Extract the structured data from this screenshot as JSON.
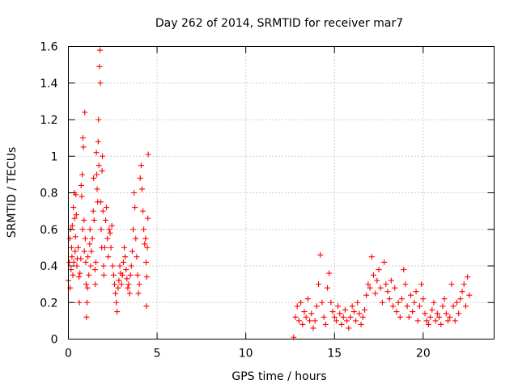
{
  "chart_data": {
    "type": "scatter",
    "title": "Day 262 of 2014, SRMTID for receiver mar7",
    "xlabel": "GPS time / hours",
    "ylabel": "SRMTID / TECUs",
    "xlim": [
      0,
      24
    ],
    "ylim": [
      0,
      1.6
    ],
    "xticks": [
      0,
      5,
      10,
      15,
      20
    ],
    "xtick_labels": [
      "0",
      "5",
      "10",
      "15",
      "20"
    ],
    "yticks": [
      0,
      0.2,
      0.4,
      0.6,
      0.8,
      1.0,
      1.2,
      1.4,
      1.6
    ],
    "ytick_labels": [
      "0",
      "0.2",
      "0.4",
      "0.6",
      "0.8",
      "1",
      "1.2",
      "1.4",
      "1.6"
    ],
    "grid": true,
    "marker": "+",
    "color": "#ff0000",
    "series": [
      {
        "name": "SRMTID",
        "points": [
          [
            0.0,
            0.32
          ],
          [
            0.05,
            0.42
          ],
          [
            0.08,
            0.55
          ],
          [
            0.1,
            0.28
          ],
          [
            0.12,
            0.6
          ],
          [
            0.15,
            0.38
          ],
          [
            0.18,
            0.5
          ],
          [
            0.2,
            0.45
          ],
          [
            0.22,
            0.62
          ],
          [
            0.25,
            0.35
          ],
          [
            0.28,
            0.72
          ],
          [
            0.3,
            0.42
          ],
          [
            0.33,
            0.8
          ],
          [
            0.35,
            0.66
          ],
          [
            0.38,
            0.48
          ],
          [
            0.4,
            0.56
          ],
          [
            0.42,
            0.79
          ],
          [
            0.45,
            0.68
          ],
          [
            0.48,
            0.4
          ],
          [
            0.5,
            0.44
          ],
          [
            0.55,
            0.5
          ],
          [
            0.6,
            0.34
          ],
          [
            0.62,
            0.2
          ],
          [
            0.65,
            0.36
          ],
          [
            0.7,
            0.44
          ],
          [
            0.72,
            0.84
          ],
          [
            0.75,
            0.78
          ],
          [
            0.78,
            0.9
          ],
          [
            0.8,
            0.6
          ],
          [
            0.82,
            1.1
          ],
          [
            0.85,
            1.05
          ],
          [
            0.88,
            0.65
          ],
          [
            0.9,
            0.48
          ],
          [
            0.92,
            1.24
          ],
          [
            0.95,
            0.55
          ],
          [
            0.98,
            0.42
          ],
          [
            1.0,
            0.3
          ],
          [
            1.02,
            0.12
          ],
          [
            1.05,
            0.2
          ],
          [
            1.08,
            0.28
          ],
          [
            1.1,
            0.45
          ],
          [
            1.15,
            0.35
          ],
          [
            1.2,
            0.52
          ],
          [
            1.22,
            0.6
          ],
          [
            1.25,
            0.4
          ],
          [
            1.3,
            0.48
          ],
          [
            1.35,
            0.55
          ],
          [
            1.4,
            0.7
          ],
          [
            1.42,
            0.88
          ],
          [
            1.45,
            0.65
          ],
          [
            1.5,
            0.38
          ],
          [
            1.52,
            0.3
          ],
          [
            1.55,
            0.42
          ],
          [
            1.58,
            1.02
          ],
          [
            1.6,
            0.9
          ],
          [
            1.62,
            0.82
          ],
          [
            1.65,
            0.75
          ],
          [
            1.68,
            1.08
          ],
          [
            1.7,
            1.2
          ],
          [
            1.72,
            0.95
          ],
          [
            1.75,
            1.49
          ],
          [
            1.78,
            1.58
          ],
          [
            1.8,
            1.4
          ],
          [
            1.82,
            0.75
          ],
          [
            1.85,
            0.6
          ],
          [
            1.88,
            0.5
          ],
          [
            1.9,
            0.92
          ],
          [
            1.92,
            1.0
          ],
          [
            1.95,
            0.7
          ],
          [
            1.98,
            0.4
          ],
          [
            2.0,
            0.35
          ],
          [
            2.05,
            0.5
          ],
          [
            2.1,
            0.65
          ],
          [
            2.15,
            0.72
          ],
          [
            2.2,
            0.55
          ],
          [
            2.25,
            0.45
          ],
          [
            2.3,
            0.6
          ],
          [
            2.35,
            0.58
          ],
          [
            2.4,
            0.5
          ],
          [
            2.45,
            0.62
          ],
          [
            2.5,
            0.4
          ],
          [
            2.55,
            0.35
          ],
          [
            2.6,
            0.3
          ],
          [
            2.65,
            0.25
          ],
          [
            2.7,
            0.2
          ],
          [
            2.75,
            0.15
          ],
          [
            2.8,
            0.28
          ],
          [
            2.85,
            0.32
          ],
          [
            2.9,
            0.4
          ],
          [
            2.95,
            0.36
          ],
          [
            3.0,
            0.3
          ],
          [
            3.05,
            0.35
          ],
          [
            3.1,
            0.42
          ],
          [
            3.15,
            0.5
          ],
          [
            3.2,
            0.45
          ],
          [
            3.25,
            0.38
          ],
          [
            3.3,
            0.33
          ],
          [
            3.35,
            0.28
          ],
          [
            3.4,
            0.3
          ],
          [
            3.45,
            0.25
          ],
          [
            3.5,
            0.35
          ],
          [
            3.55,
            0.4
          ],
          [
            3.6,
            0.48
          ],
          [
            3.65,
            0.6
          ],
          [
            3.7,
            0.8
          ],
          [
            3.75,
            0.72
          ],
          [
            3.8,
            0.55
          ],
          [
            3.85,
            0.45
          ],
          [
            3.9,
            0.35
          ],
          [
            3.95,
            0.25
          ],
          [
            4.0,
            0.3
          ],
          [
            4.05,
            0.88
          ],
          [
            4.1,
            0.95
          ],
          [
            4.15,
            0.82
          ],
          [
            4.2,
            0.7
          ],
          [
            4.25,
            0.6
          ],
          [
            4.3,
            0.52
          ],
          [
            4.35,
            0.55
          ],
          [
            4.38,
            0.42
          ],
          [
            4.4,
            0.18
          ],
          [
            4.42,
            0.34
          ],
          [
            4.45,
            0.5
          ],
          [
            4.48,
            0.66
          ],
          [
            4.5,
            1.01
          ],
          [
            12.7,
            0.01
          ],
          [
            12.8,
            0.12
          ],
          [
            12.9,
            0.18
          ],
          [
            13.0,
            0.1
          ],
          [
            13.1,
            0.2
          ],
          [
            13.2,
            0.08
          ],
          [
            13.3,
            0.15
          ],
          [
            13.4,
            0.12
          ],
          [
            13.5,
            0.22
          ],
          [
            13.6,
            0.1
          ],
          [
            13.7,
            0.14
          ],
          [
            13.8,
            0.06
          ],
          [
            13.9,
            0.1
          ],
          [
            14.0,
            0.18
          ],
          [
            14.1,
            0.3
          ],
          [
            14.2,
            0.46
          ],
          [
            14.3,
            0.2
          ],
          [
            14.4,
            0.12
          ],
          [
            14.5,
            0.08
          ],
          [
            14.6,
            0.28
          ],
          [
            14.7,
            0.36
          ],
          [
            14.8,
            0.2
          ],
          [
            14.9,
            0.15
          ],
          [
            15.0,
            0.12
          ],
          [
            15.1,
            0.1
          ],
          [
            15.2,
            0.18
          ],
          [
            15.3,
            0.14
          ],
          [
            15.4,
            0.08
          ],
          [
            15.5,
            0.12
          ],
          [
            15.6,
            0.16
          ],
          [
            15.7,
            0.1
          ],
          [
            15.8,
            0.06
          ],
          [
            15.9,
            0.12
          ],
          [
            16.0,
            0.18
          ],
          [
            16.1,
            0.15
          ],
          [
            16.2,
            0.1
          ],
          [
            16.3,
            0.2
          ],
          [
            16.4,
            0.14
          ],
          [
            16.5,
            0.08
          ],
          [
            16.6,
            0.12
          ],
          [
            16.7,
            0.16
          ],
          [
            16.8,
            0.24
          ],
          [
            16.9,
            0.3
          ],
          [
            17.0,
            0.28
          ],
          [
            17.1,
            0.45
          ],
          [
            17.2,
            0.35
          ],
          [
            17.3,
            0.25
          ],
          [
            17.4,
            0.32
          ],
          [
            17.5,
            0.38
          ],
          [
            17.6,
            0.28
          ],
          [
            17.7,
            0.2
          ],
          [
            17.8,
            0.42
          ],
          [
            17.9,
            0.3
          ],
          [
            18.0,
            0.26
          ],
          [
            18.1,
            0.22
          ],
          [
            18.2,
            0.32
          ],
          [
            18.3,
            0.18
          ],
          [
            18.4,
            0.28
          ],
          [
            18.5,
            0.15
          ],
          [
            18.6,
            0.2
          ],
          [
            18.7,
            0.12
          ],
          [
            18.8,
            0.22
          ],
          [
            18.9,
            0.38
          ],
          [
            19.0,
            0.3
          ],
          [
            19.1,
            0.18
          ],
          [
            19.2,
            0.12
          ],
          [
            19.3,
            0.24
          ],
          [
            19.4,
            0.15
          ],
          [
            19.5,
            0.2
          ],
          [
            19.6,
            0.26
          ],
          [
            19.7,
            0.1
          ],
          [
            19.8,
            0.18
          ],
          [
            19.9,
            0.3
          ],
          [
            20.0,
            0.22
          ],
          [
            20.1,
            0.14
          ],
          [
            20.2,
            0.1
          ],
          [
            20.3,
            0.08
          ],
          [
            20.4,
            0.12
          ],
          [
            20.5,
            0.16
          ],
          [
            20.6,
            0.2
          ],
          [
            20.7,
            0.1
          ],
          [
            20.8,
            0.14
          ],
          [
            20.9,
            0.12
          ],
          [
            21.0,
            0.08
          ],
          [
            21.1,
            0.18
          ],
          [
            21.2,
            0.22
          ],
          [
            21.3,
            0.14
          ],
          [
            21.4,
            0.1
          ],
          [
            21.5,
            0.12
          ],
          [
            21.6,
            0.3
          ],
          [
            21.7,
            0.18
          ],
          [
            21.8,
            0.1
          ],
          [
            21.9,
            0.2
          ],
          [
            22.0,
            0.14
          ],
          [
            22.1,
            0.22
          ],
          [
            22.2,
            0.26
          ],
          [
            22.3,
            0.3
          ],
          [
            22.4,
            0.18
          ],
          [
            22.5,
            0.34
          ],
          [
            22.6,
            0.24
          ]
        ]
      }
    ]
  }
}
